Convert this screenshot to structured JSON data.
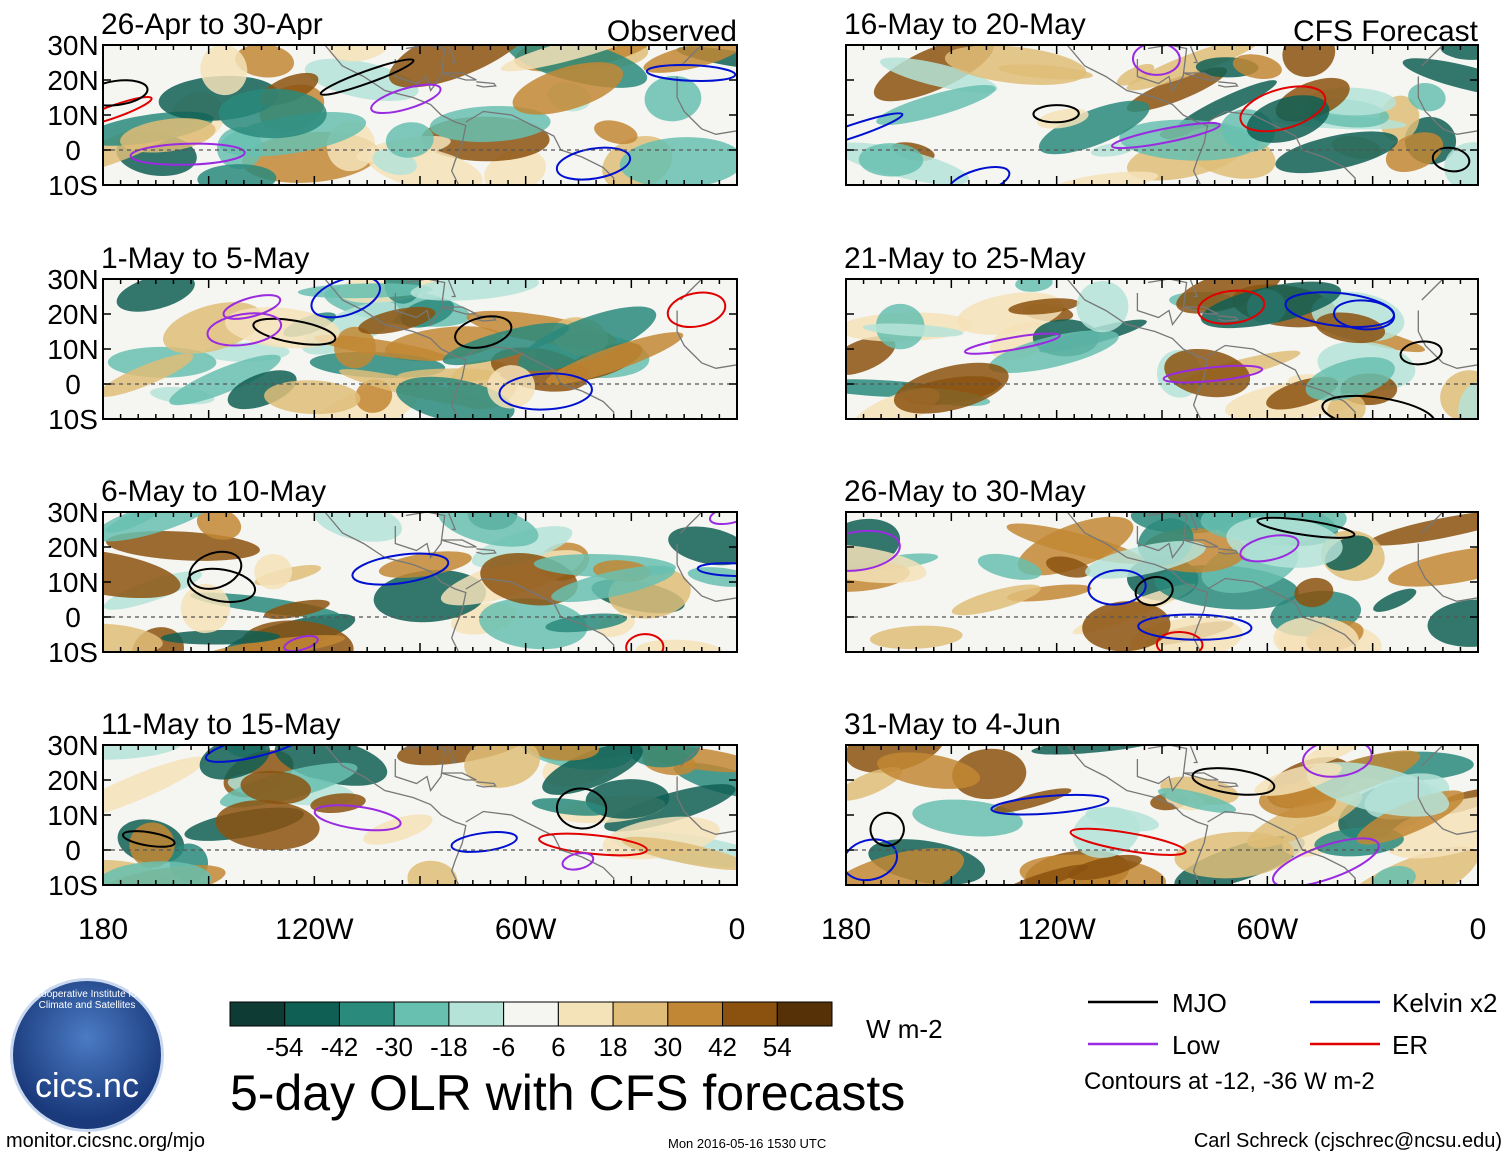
{
  "panels": [
    {
      "id": "p1",
      "label": "26-Apr to 30-Apr",
      "tag": "Observed"
    },
    {
      "id": "p2",
      "label": "1-May to 5-May",
      "tag": ""
    },
    {
      "id": "p3",
      "label": "6-May to 10-May",
      "tag": ""
    },
    {
      "id": "p4",
      "label": "11-May to 15-May",
      "tag": ""
    },
    {
      "id": "p5",
      "label": "16-May to 20-May",
      "tag": "CFS Forecast"
    },
    {
      "id": "p6",
      "label": "21-May to 25-May",
      "tag": ""
    },
    {
      "id": "p7",
      "label": "26-May to 30-May",
      "tag": ""
    },
    {
      "id": "p8",
      "label": "31-May to 4-Jun",
      "tag": ""
    }
  ],
  "lat_ticks": [
    "30N",
    "20N",
    "10N",
    "0",
    "10S"
  ],
  "lon_ticks": [
    "180",
    "120W",
    "60W",
    "0"
  ],
  "colorbar": {
    "labels": [
      "-54",
      "-42",
      "-30",
      "-18",
      "-6",
      "6",
      "18",
      "30",
      "42",
      "54"
    ],
    "colors": [
      "#0e3b33",
      "#0f5f55",
      "#2a8a7c",
      "#67c0b0",
      "#b5e3d8",
      "#f5f5f2",
      "#f4e2b8",
      "#dfbd78",
      "#c28734",
      "#8b520f",
      "#563108"
    ],
    "units": "W m-2"
  },
  "legend": {
    "items": [
      {
        "label": "MJO",
        "color": "#000000"
      },
      {
        "label": "Kelvin x2",
        "color": "#0010d0"
      },
      {
        "label": "Low",
        "color": "#9a2be0"
      },
      {
        "label": "ER",
        "color": "#e00000"
      }
    ],
    "note": "Contours at -12, -36 W m-2"
  },
  "title": "5-day OLR with CFS forecasts",
  "logo_text": "cics.nc",
  "logo_arc": "Cooperative Institute for Climate and Satellites",
  "footer": {
    "left": "monitor.cicsnc.org/mjo",
    "center": "Mon 2016-05-16 1530 UTC",
    "right": "Carl Schreck (cjschrec@ncsu.edu)"
  }
}
